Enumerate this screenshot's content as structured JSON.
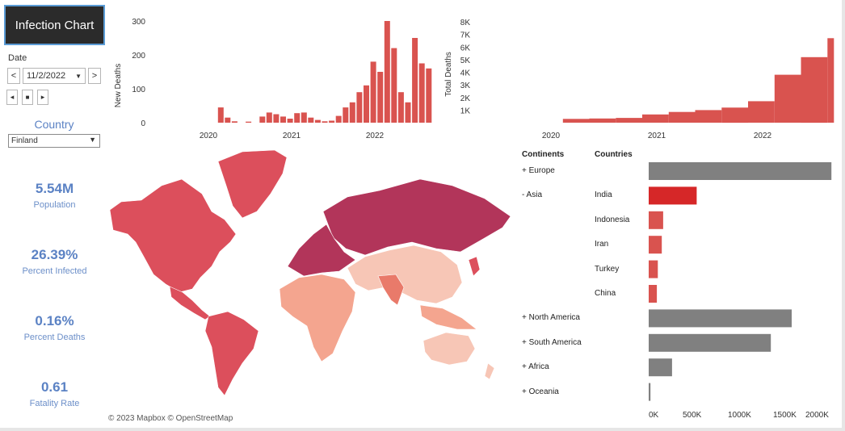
{
  "title": "Infection Chart",
  "filters": {
    "date_label": "Date",
    "date_value": "11/2/2022",
    "prev_symbol": "<",
    "next_symbol": ">",
    "country_label": "Country",
    "country_value": "Finland"
  },
  "playback": {
    "back_symbol": "◂",
    "stop_symbol": "■",
    "forward_symbol": "▸"
  },
  "kpis": [
    {
      "value": "5.54M",
      "label": "Population"
    },
    {
      "value": "26.39%",
      "label": "Percent Infected"
    },
    {
      "value": "0.16%",
      "label": "Percent Deaths"
    },
    {
      "value": "0.61",
      "label": "Fatality Rate"
    }
  ],
  "map_attribution": "© 2023 Mapbox  © OpenStreetMap",
  "colors": {
    "bar_red": "#d9534f",
    "bar_selected": "#d62728",
    "bar_gray": "#808080",
    "kpi_blue": "#5b82c4",
    "map_dark": "#b2355a",
    "map_mid": "#dc4f5c",
    "map_light": "#f4a58f",
    "map_pale": "#f7c6b6"
  },
  "chart_data": [
    {
      "type": "bar",
      "ylabel": "New Deaths",
      "xlabel": "",
      "x_ticks": [
        "2020",
        "2021",
        "2022"
      ],
      "y_ticks": [
        "0",
        "100",
        "200",
        "300"
      ],
      "ylim": [
        0,
        300
      ],
      "x": [
        "2020-04",
        "2020-05",
        "2020-06",
        "2020-08",
        "2020-10",
        "2020-11",
        "2020-12",
        "2021-01",
        "2021-02",
        "2021-03",
        "2021-04",
        "2021-05",
        "2021-06",
        "2021-07",
        "2021-08",
        "2021-09",
        "2021-10",
        "2021-11",
        "2021-12",
        "2022-01",
        "2022-02",
        "2022-03",
        "2022-04",
        "2022-05",
        "2022-06",
        "2022-07",
        "2022-08",
        "2022-09",
        "2022-10"
      ],
      "values": [
        45,
        15,
        4,
        3,
        18,
        30,
        25,
        18,
        12,
        28,
        30,
        15,
        8,
        4,
        6,
        20,
        45,
        60,
        90,
        110,
        180,
        150,
        300,
        220,
        90,
        60,
        250,
        175,
        160
      ]
    },
    {
      "type": "bar",
      "ylabel": "Total Deaths",
      "xlabel": "",
      "x_ticks": [
        "2020",
        "2021",
        "2022"
      ],
      "y_ticks": [
        "1K",
        "2K",
        "3K",
        "4K",
        "5K",
        "6K",
        "7K",
        "8K"
      ],
      "ylim": [
        0,
        8000
      ],
      "x": [
        "2020-04",
        "2020-07",
        "2020-10",
        "2021-01",
        "2021-04",
        "2021-07",
        "2021-10",
        "2022-01",
        "2022-04",
        "2022-07",
        "2022-10"
      ],
      "values": [
        300,
        330,
        380,
        650,
        850,
        1000,
        1200,
        1700,
        3800,
        5200,
        6700
      ]
    },
    {
      "type": "bar",
      "orientation": "horizontal",
      "headers": [
        "Continents",
        "Countries"
      ],
      "rows": [
        {
          "continent": "+ Europe",
          "country": "",
          "value": 2020000
        },
        {
          "continent": "- Asia",
          "country": "India",
          "value": 530000
        },
        {
          "continent": "",
          "country": "Indonesia",
          "value": 160000
        },
        {
          "continent": "",
          "country": "Iran",
          "value": 145000
        },
        {
          "continent": "",
          "country": "Turkey",
          "value": 101000
        },
        {
          "continent": "",
          "country": "China",
          "value": 90000
        },
        {
          "continent": "+ North America",
          "country": "",
          "value": 1580000
        },
        {
          "continent": "+ South America",
          "country": "",
          "value": 1350000
        },
        {
          "continent": "+ Africa",
          "country": "",
          "value": 258000
        },
        {
          "continent": "+ Oceania",
          "country": "",
          "value": 20000
        }
      ],
      "x_ticks": [
        "0K",
        "500K",
        "1000K",
        "1500K",
        "2000K"
      ],
      "xlim": [
        0,
        2000000
      ]
    }
  ]
}
